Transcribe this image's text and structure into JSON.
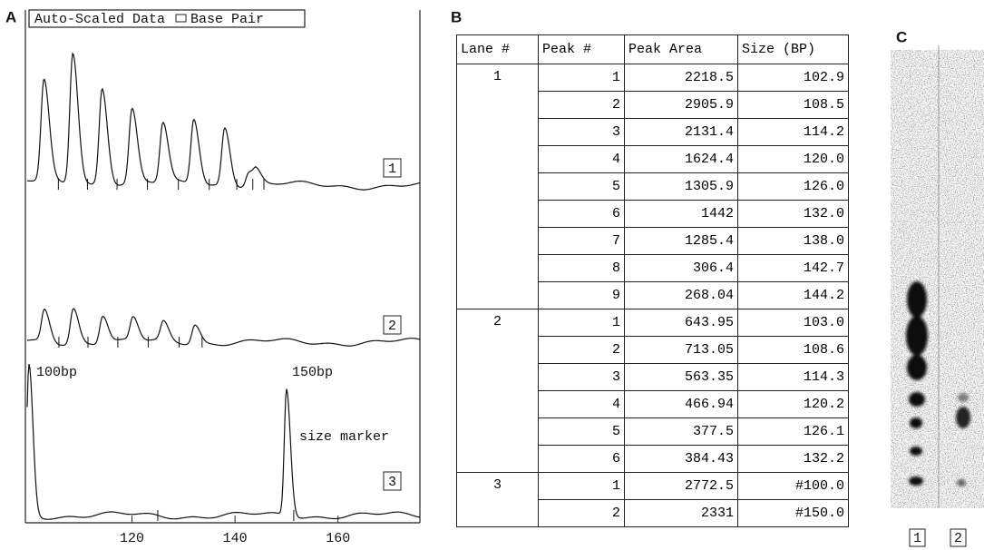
{
  "panel_a": {
    "label": "A",
    "legend": "Auto-Scaled Data",
    "legend_unit": "Base Pair",
    "xlim": [
      99.3,
      175.9
    ],
    "xticks": [
      120,
      140,
      160
    ],
    "trace_labels": [
      "1",
      "2",
      "3"
    ],
    "annotations": [
      "100bp",
      "150bp",
      "size marker"
    ]
  },
  "panel_b": {
    "label": "B",
    "table": {
      "header": [
        "Lane #",
        "Peak #",
        "Peak Area",
        "Size (BP)"
      ],
      "lanes": [
        {
          "lane": "1",
          "rows": [
            [
              "1",
              "2218.5",
              "102.9"
            ],
            [
              "2",
              "2905.9",
              "108.5"
            ],
            [
              "3",
              "2131.4",
              "114.2"
            ],
            [
              "4",
              "1624.4",
              "120.0"
            ],
            [
              "5",
              "1305.9",
              "126.0"
            ],
            [
              "6",
              "1442",
              "132.0"
            ],
            [
              "7",
              "1285.4",
              "138.0"
            ],
            [
              "8",
              "306.4",
              "142.7"
            ],
            [
              "9",
              "268.04",
              "144.2"
            ]
          ]
        },
        {
          "lane": "2",
          "rows": [
            [
              "1",
              "643.95",
              "103.0"
            ],
            [
              "2",
              "713.05",
              "108.6"
            ],
            [
              "3",
              "563.35",
              "114.3"
            ],
            [
              "4",
              "466.94",
              "120.2"
            ],
            [
              "5",
              "377.5",
              "126.1"
            ],
            [
              "6",
              "384.43",
              "132.2"
            ]
          ]
        },
        {
          "lane": "3",
          "rows": [
            [
              "1",
              "2772.5",
              "#100.0"
            ],
            [
              "2",
              "2331",
              "#150.0"
            ]
          ]
        }
      ]
    }
  },
  "panel_c": {
    "label": "C",
    "lane_labels": [
      "1",
      "2"
    ]
  }
}
